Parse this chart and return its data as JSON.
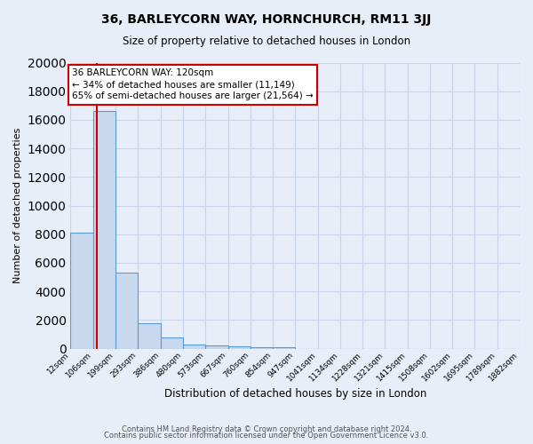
{
  "title": "36, BARLEYCORN WAY, HORNCHURCH, RM11 3JJ",
  "subtitle": "Size of property relative to detached houses in London",
  "xlabel": "Distribution of detached houses by size in London",
  "ylabel": "Number of detached properties",
  "bin_labels": [
    "12sqm",
    "106sqm",
    "199sqm",
    "293sqm",
    "386sqm",
    "480sqm",
    "573sqm",
    "667sqm",
    "760sqm",
    "854sqm",
    "947sqm",
    "1041sqm",
    "1134sqm",
    "1228sqm",
    "1321sqm",
    "1415sqm",
    "1508sqm",
    "1602sqm",
    "1695sqm",
    "1789sqm",
    "1882sqm"
  ],
  "bin_edges": [
    12,
    106,
    199,
    293,
    386,
    480,
    573,
    667,
    760,
    854,
    947,
    1041,
    1134,
    1228,
    1321,
    1415,
    1508,
    1602,
    1695,
    1789,
    1882
  ],
  "bar_heights": [
    8100,
    16600,
    5300,
    1750,
    750,
    300,
    200,
    150,
    100,
    100,
    0,
    0,
    0,
    0,
    0,
    0,
    0,
    0,
    0,
    0
  ],
  "bar_color": "#c8d9ed",
  "bar_edge_color": "#5b9bd5",
  "grid_color": "#c8d4e8",
  "background_color": "#e8eef8",
  "property_size": 120,
  "property_label": "36 BARLEYCORN WAY: 120sqm",
  "annotation_line1": "← 34% of detached houses are smaller (11,149)",
  "annotation_line2": "65% of semi-detached houses are larger (21,564) →",
  "vline_color": "#cc0000",
  "annotation_box_color": "#ffffff",
  "annotation_box_edge": "#cc0000",
  "ylim": [
    0,
    20000
  ],
  "yticks": [
    0,
    2000,
    4000,
    6000,
    8000,
    10000,
    12000,
    14000,
    16000,
    18000,
    20000
  ],
  "footer_line1": "Contains HM Land Registry data © Crown copyright and database right 2024.",
  "footer_line2": "Contains public sector information licensed under the Open Government Licence v3.0."
}
